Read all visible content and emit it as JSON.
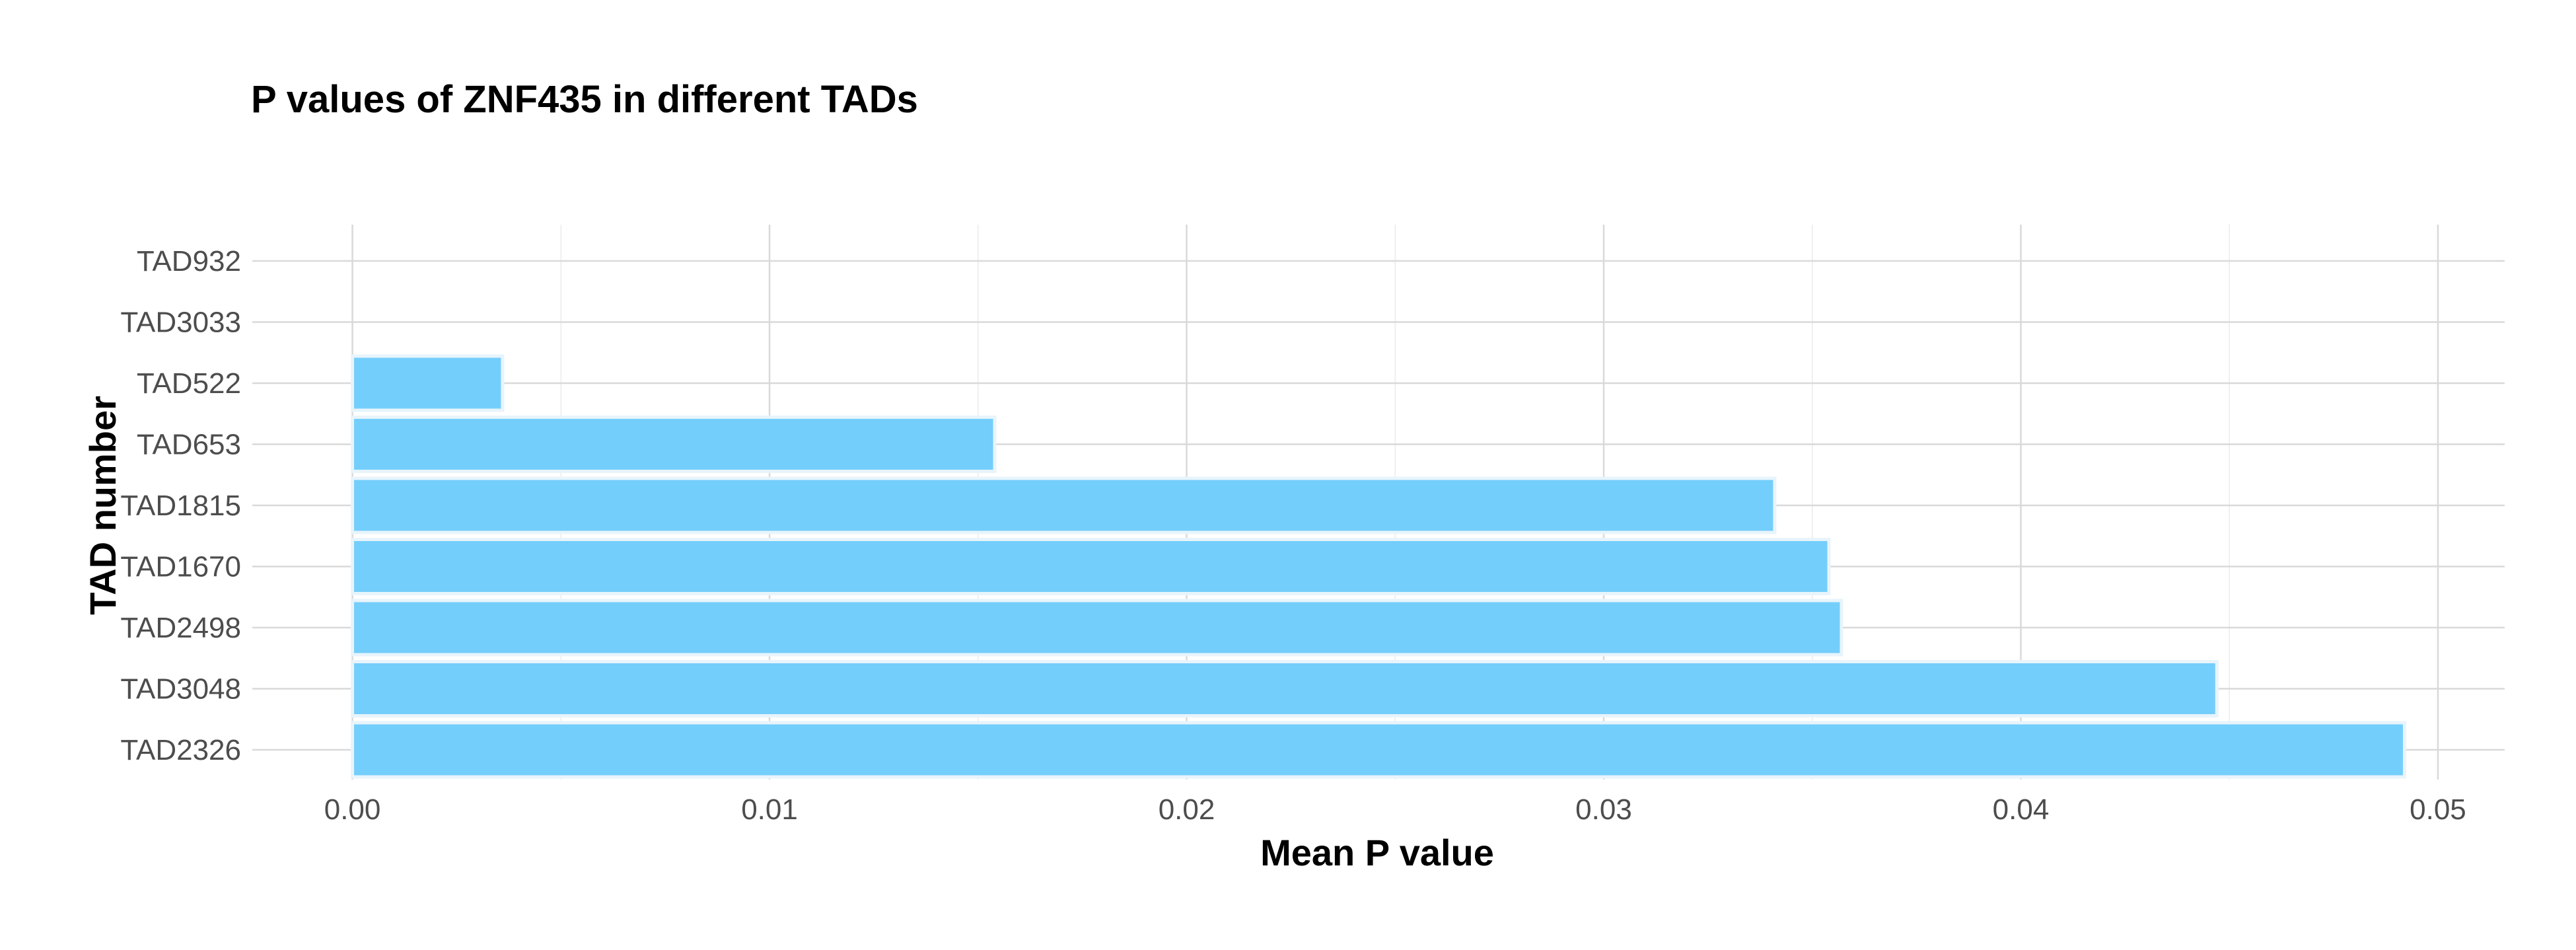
{
  "chart_data": {
    "type": "bar",
    "orientation": "horizontal",
    "title": "P values of ZNF435 in different TADs",
    "xlabel": "Mean P value",
    "ylabel": "TAD number",
    "categories": [
      "TAD932",
      "TAD3033",
      "TAD522",
      "TAD653",
      "TAD1815",
      "TAD1670",
      "TAD2498",
      "TAD3048",
      "TAD2326"
    ],
    "values": [
      0.0,
      0.0,
      0.0036,
      0.0154,
      0.0341,
      0.0354,
      0.0357,
      0.0447,
      0.0492
    ],
    "xticks": [
      0.0,
      0.01,
      0.02,
      0.03,
      0.04,
      0.05
    ],
    "xtick_labels": [
      "0.00",
      "0.01",
      "0.02",
      "0.03",
      "0.04",
      "0.05"
    ],
    "xlim": [
      -0.0024,
      0.0516
    ],
    "grid": true,
    "legend": "none",
    "bar_color": "#74cefb"
  }
}
